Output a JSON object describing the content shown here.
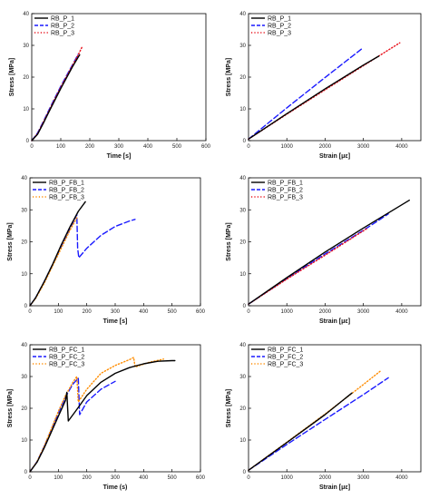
{
  "chart_data": [
    {
      "type": "line",
      "xlabel": "Time [s]",
      "ylabel": "Stress [MPa]",
      "xlim": [
        0,
        600
      ],
      "ylim": [
        0,
        40
      ],
      "xticks": [
        "0",
        "100",
        "200",
        "300",
        "400",
        "500",
        "600"
      ],
      "yticks": [
        "0",
        "10",
        "20",
        "30",
        "40"
      ],
      "legend": "top-left",
      "series": [
        {
          "name": "RB_P_1",
          "color": "#000000",
          "dash": "solid",
          "x": [
            0,
            20,
            40,
            60,
            80,
            100,
            120,
            140,
            160,
            165
          ],
          "y": [
            0,
            2,
            5.5,
            9.2,
            12.8,
            16.4,
            19.8,
            23.2,
            26.3,
            27
          ]
        },
        {
          "name": "RB_P_2",
          "color": "#1a1aff",
          "dash": "dash",
          "x": [
            0,
            20,
            40,
            60,
            80,
            100,
            120,
            140,
            160
          ],
          "y": [
            0,
            2.4,
            6,
            9.8,
            13.5,
            17.1,
            20.5,
            23.8,
            27.2
          ]
        },
        {
          "name": "RB_P_3",
          "color": "#e8141e",
          "dash": "dot",
          "x": [
            0,
            20,
            40,
            60,
            80,
            100,
            120,
            140,
            160,
            175
          ],
          "y": [
            0,
            2.2,
            5.8,
            9.5,
            13.2,
            16.8,
            20.2,
            23.6,
            27,
            29.8
          ]
        }
      ]
    },
    {
      "type": "line",
      "xlabel": "Strain [με]",
      "ylabel": "Stress [MPa]",
      "xlim": [
        0,
        4500
      ],
      "ylim": [
        0,
        40
      ],
      "xticks": [
        "0",
        "1000",
        "2000",
        "3000",
        "4000"
      ],
      "yticks": [
        "0",
        "10",
        "20",
        "30",
        "40"
      ],
      "legend": "top-left",
      "series": [
        {
          "name": "RB_P_1",
          "color": "#000000",
          "dash": "solid",
          "x": [
            0,
            1000,
            2000,
            3000,
            3400
          ],
          "y": [
            0.5,
            8.5,
            16.3,
            23.8,
            26.6
          ]
        },
        {
          "name": "RB_P_2",
          "color": "#1a1aff",
          "dash": "dash",
          "x": [
            0,
            1000,
            2000,
            3000
          ],
          "y": [
            0.5,
            10.3,
            19.9,
            29.3
          ]
        },
        {
          "name": "RB_P_3",
          "color": "#e8141e",
          "dash": "dot",
          "x": [
            0,
            1000,
            2000,
            3000,
            3950
          ],
          "y": [
            0.5,
            8.3,
            16,
            23.6,
            30.8
          ]
        }
      ]
    },
    {
      "type": "line",
      "xlabel": "Time [s]",
      "ylabel": "Stress [MPa]",
      "xlim": [
        0,
        600
      ],
      "ylim": [
        0,
        40
      ],
      "xticks": [
        "0",
        "100",
        "200",
        "300",
        "400",
        "500",
        "600"
      ],
      "yticks": [
        "0",
        "10",
        "20",
        "30",
        "40"
      ],
      "legend": "top-left",
      "series": [
        {
          "name": "RB_P_FB_1",
          "color": "#000000",
          "dash": "solid",
          "x": [
            0,
            20,
            50,
            80,
            110,
            140,
            170,
            195
          ],
          "y": [
            0,
            2.5,
            7.5,
            13,
            19,
            24.5,
            29.5,
            32.5
          ]
        },
        {
          "name": "RB_P_FB_2",
          "color": "#1a1aff",
          "dash": "dash",
          "x": [
            0,
            20,
            50,
            80,
            110,
            140,
            165,
            168,
            172,
            200,
            250,
            300,
            350,
            370
          ],
          "y": [
            0,
            2.5,
            7.5,
            13,
            18.5,
            24,
            28.5,
            18,
            15,
            18,
            22,
            24.8,
            26.5,
            27
          ]
        },
        {
          "name": "RB_P_FB_3",
          "color": "#ff8c00",
          "dash": "dot",
          "x": [
            0,
            20,
            50,
            80,
            110,
            140,
            165
          ],
          "y": [
            0,
            2.3,
            7,
            12.5,
            18,
            23.5,
            27.5
          ]
        }
      ]
    },
    {
      "type": "line",
      "xlabel": "Strain [με]",
      "ylabel": "Stress [MPa]",
      "xlim": [
        0,
        4500
      ],
      "ylim": [
        0,
        40
      ],
      "xticks": [
        "0",
        "1000",
        "2000",
        "3000",
        "4000"
      ],
      "yticks": [
        "0",
        "10",
        "20",
        "30",
        "40"
      ],
      "legend": "top-left",
      "series": [
        {
          "name": "RB_P_FB_1",
          "color": "#000000",
          "dash": "solid",
          "x": [
            0,
            1000,
            2000,
            3000,
            4200
          ],
          "y": [
            0.5,
            8.8,
            16.8,
            24.3,
            33
          ]
        },
        {
          "name": "RB_P_FB_2",
          "color": "#1a1aff",
          "dash": "dash",
          "x": [
            0,
            1000,
            2000,
            3000,
            3650
          ],
          "y": [
            0.5,
            8.5,
            16.2,
            23.6,
            28.7
          ]
        },
        {
          "name": "RB_P_FB_3",
          "color": "#e8141e",
          "dash": "dot",
          "x": [
            0,
            1000,
            2000,
            3100
          ],
          "y": [
            0.5,
            8.3,
            15.8,
            24.2
          ]
        }
      ]
    },
    {
      "type": "line",
      "xlabel": "Time (s)",
      "ylabel": "Stress [MPa]",
      "xlim": [
        0,
        600
      ],
      "ylim": [
        0,
        40
      ],
      "xticks": [
        "0",
        "100",
        "200",
        "300",
        "400",
        "500",
        "600"
      ],
      "yticks": [
        "0",
        "10",
        "20",
        "30",
        "40"
      ],
      "legend": "top-left",
      "series": [
        {
          "name": "RB_P_FC_1",
          "color": "#000000",
          "dash": "solid",
          "x": [
            0,
            25,
            50,
            75,
            100,
            125,
            130,
            135,
            160,
            200,
            250,
            300,
            350,
            400,
            450,
            500,
            510
          ],
          "y": [
            0,
            3,
            7.5,
            12.5,
            17.5,
            22.5,
            25,
            16,
            19,
            24,
            28.2,
            31,
            32.8,
            34,
            34.8,
            35,
            35
          ]
        },
        {
          "name": "RB_P_FC_2",
          "color": "#1a1aff",
          "dash": "dash",
          "x": [
            0,
            25,
            50,
            75,
            100,
            125,
            150,
            170,
            175,
            200,
            250,
            300
          ],
          "y": [
            0,
            3.2,
            8,
            13.2,
            18.5,
            23.5,
            27.5,
            29.5,
            18,
            22,
            26,
            28.5
          ]
        },
        {
          "name": "RB_P_FC_3",
          "color": "#ff8c00",
          "dash": "dot",
          "x": [
            0,
            25,
            50,
            75,
            100,
            125,
            150,
            165,
            170,
            200,
            250,
            300,
            350,
            365,
            370,
            420,
            470
          ],
          "y": [
            0,
            3.2,
            8,
            13.5,
            19,
            24,
            28,
            30,
            22,
            26,
            31,
            33.5,
            35.3,
            36,
            33,
            34.5,
            35.5
          ]
        }
      ]
    },
    {
      "type": "line",
      "xlabel": "Strain [με]",
      "ylabel": "Stress [MPa]",
      "xlim": [
        0,
        4500
      ],
      "ylim": [
        0,
        40
      ],
      "xticks": [
        "0",
        "1000",
        "2000",
        "3000",
        "4000"
      ],
      "yticks": [
        "0",
        "10",
        "20",
        "30",
        "40"
      ],
      "legend": "top-left",
      "series": [
        {
          "name": "RB_P_FC_1",
          "color": "#000000",
          "dash": "solid",
          "x": [
            0,
            1000,
            2000,
            2700
          ],
          "y": [
            0.5,
            9.2,
            18,
            24.8
          ]
        },
        {
          "name": "RB_P_FC_2",
          "color": "#1a1aff",
          "dash": "dash",
          "x": [
            0,
            1000,
            2000,
            3000,
            3650
          ],
          "y": [
            0.5,
            8.6,
            16.5,
            24.3,
            29.6
          ]
        },
        {
          "name": "RB_P_FC_3",
          "color": "#ff8c00",
          "dash": "dot",
          "x": [
            0,
            1000,
            2000,
            3000,
            3450
          ],
          "y": [
            0.5,
            9.3,
            18.2,
            27.5,
            31.8
          ]
        }
      ]
    }
  ]
}
